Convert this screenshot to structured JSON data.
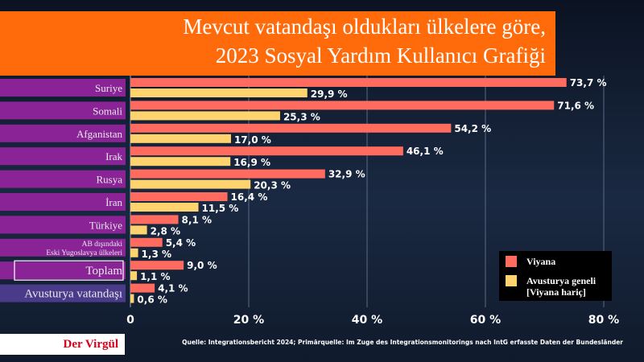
{
  "title": {
    "line1": "Mevcut vatandaşı oldukları ülkelere göre,",
    "line2": "2023 Sosyal Yardım Kullanıcı Grafiği"
  },
  "colors": {
    "title_bg": "#ff6b0a",
    "label_bg": "#8a2496",
    "series_viyana": "#ff6b5e",
    "series_avusturya": "#ffd36e",
    "brand_text": "#d0021b"
  },
  "chart_data": {
    "type": "bar",
    "orientation": "horizontal",
    "categories": [
      "Suriye",
      "Somali",
      "Afganistan",
      "Irak",
      "Rusya",
      "İran",
      "Türkiye",
      [
        "AB dışındaki",
        "Eski Yugoslavya ülkeleri"
      ],
      "Toplam",
      "Avusturya vatandaşı"
    ],
    "series": [
      {
        "name": "Viyana",
        "values": [
          73.7,
          71.6,
          54.2,
          46.1,
          32.9,
          16.4,
          8.1,
          5.4,
          9.0,
          4.1
        ],
        "labels": [
          "73,7 %",
          "71,6 %",
          "54,2 %",
          "46,1 %",
          "32,9 %",
          "16,4 %",
          "8,1 %",
          "5,4 %",
          "9,0 %",
          "4,1 %"
        ]
      },
      {
        "name": [
          "Avusturya geneli",
          "[Viyana hariç]"
        ],
        "values": [
          29.9,
          25.3,
          17.0,
          16.9,
          20.3,
          11.5,
          2.8,
          1.3,
          1.1,
          0.6
        ],
        "labels": [
          "29,9 %",
          "25,3 %",
          "17,0 %",
          "16,9 %",
          "20,3 %",
          "11,5 %",
          "2,8 %",
          "1,3 %",
          "1,1 %",
          "0,6 %"
        ]
      }
    ],
    "xlim": [
      0,
      80
    ],
    "xticks": [
      0,
      20,
      40,
      60,
      80
    ],
    "xtick_labels": [
      "0",
      "20 %",
      "40 %",
      "60 %",
      "80 %"
    ],
    "grid": true,
    "legend_position": "bottom-right",
    "highlighted_category": "Toplam"
  },
  "brand": "Der Virgül",
  "source": "Quelle: Integrationsbericht 2024; Primärquelle: Im Zuge des Integrationsmonitorings nach IntG erfasste Daten der Bundesländer"
}
